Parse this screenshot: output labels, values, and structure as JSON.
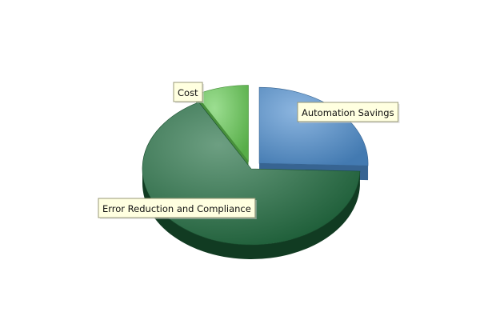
{
  "chart_data": {
    "type": "pie",
    "style": "3d-exploded",
    "title": "",
    "slices": [
      {
        "label": "Automation Savings",
        "value": 25.5,
        "color": "#4f8fd0",
        "exploded": true
      },
      {
        "label": "Error Reduction and Compliance",
        "value": 66.5,
        "color": "#1f6b3e",
        "exploded": false
      },
      {
        "label": "Cost",
        "value": 8.0,
        "color": "#66cc55",
        "exploded": true
      }
    ],
    "label_style": {
      "background": "#ffffe0",
      "border": "#999977"
    },
    "legend": "none"
  }
}
